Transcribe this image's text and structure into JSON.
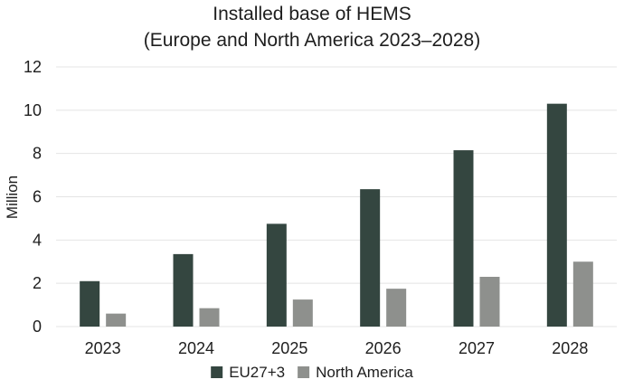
{
  "chart_data": {
    "type": "bar",
    "title": "Installed base of HEMS",
    "subtitle": "(Europe and North America 2023–2028)",
    "xlabel": "",
    "ylabel": "Million",
    "ylim": [
      0,
      12
    ],
    "yticks": [
      "0",
      "2",
      "4",
      "6",
      "8",
      "10",
      "12"
    ],
    "grid": true,
    "legend_position": "bottom",
    "categories": [
      "2023",
      "2024",
      "2025",
      "2026",
      "2027",
      "2028"
    ],
    "series": [
      {
        "name": "EU27+3",
        "color": "#344640",
        "values": [
          2.1,
          3.35,
          4.75,
          6.35,
          8.15,
          10.3
        ]
      },
      {
        "name": "North America",
        "color": "#8e908d",
        "values": [
          0.6,
          0.85,
          1.25,
          1.75,
          2.3,
          3.0
        ]
      }
    ]
  }
}
